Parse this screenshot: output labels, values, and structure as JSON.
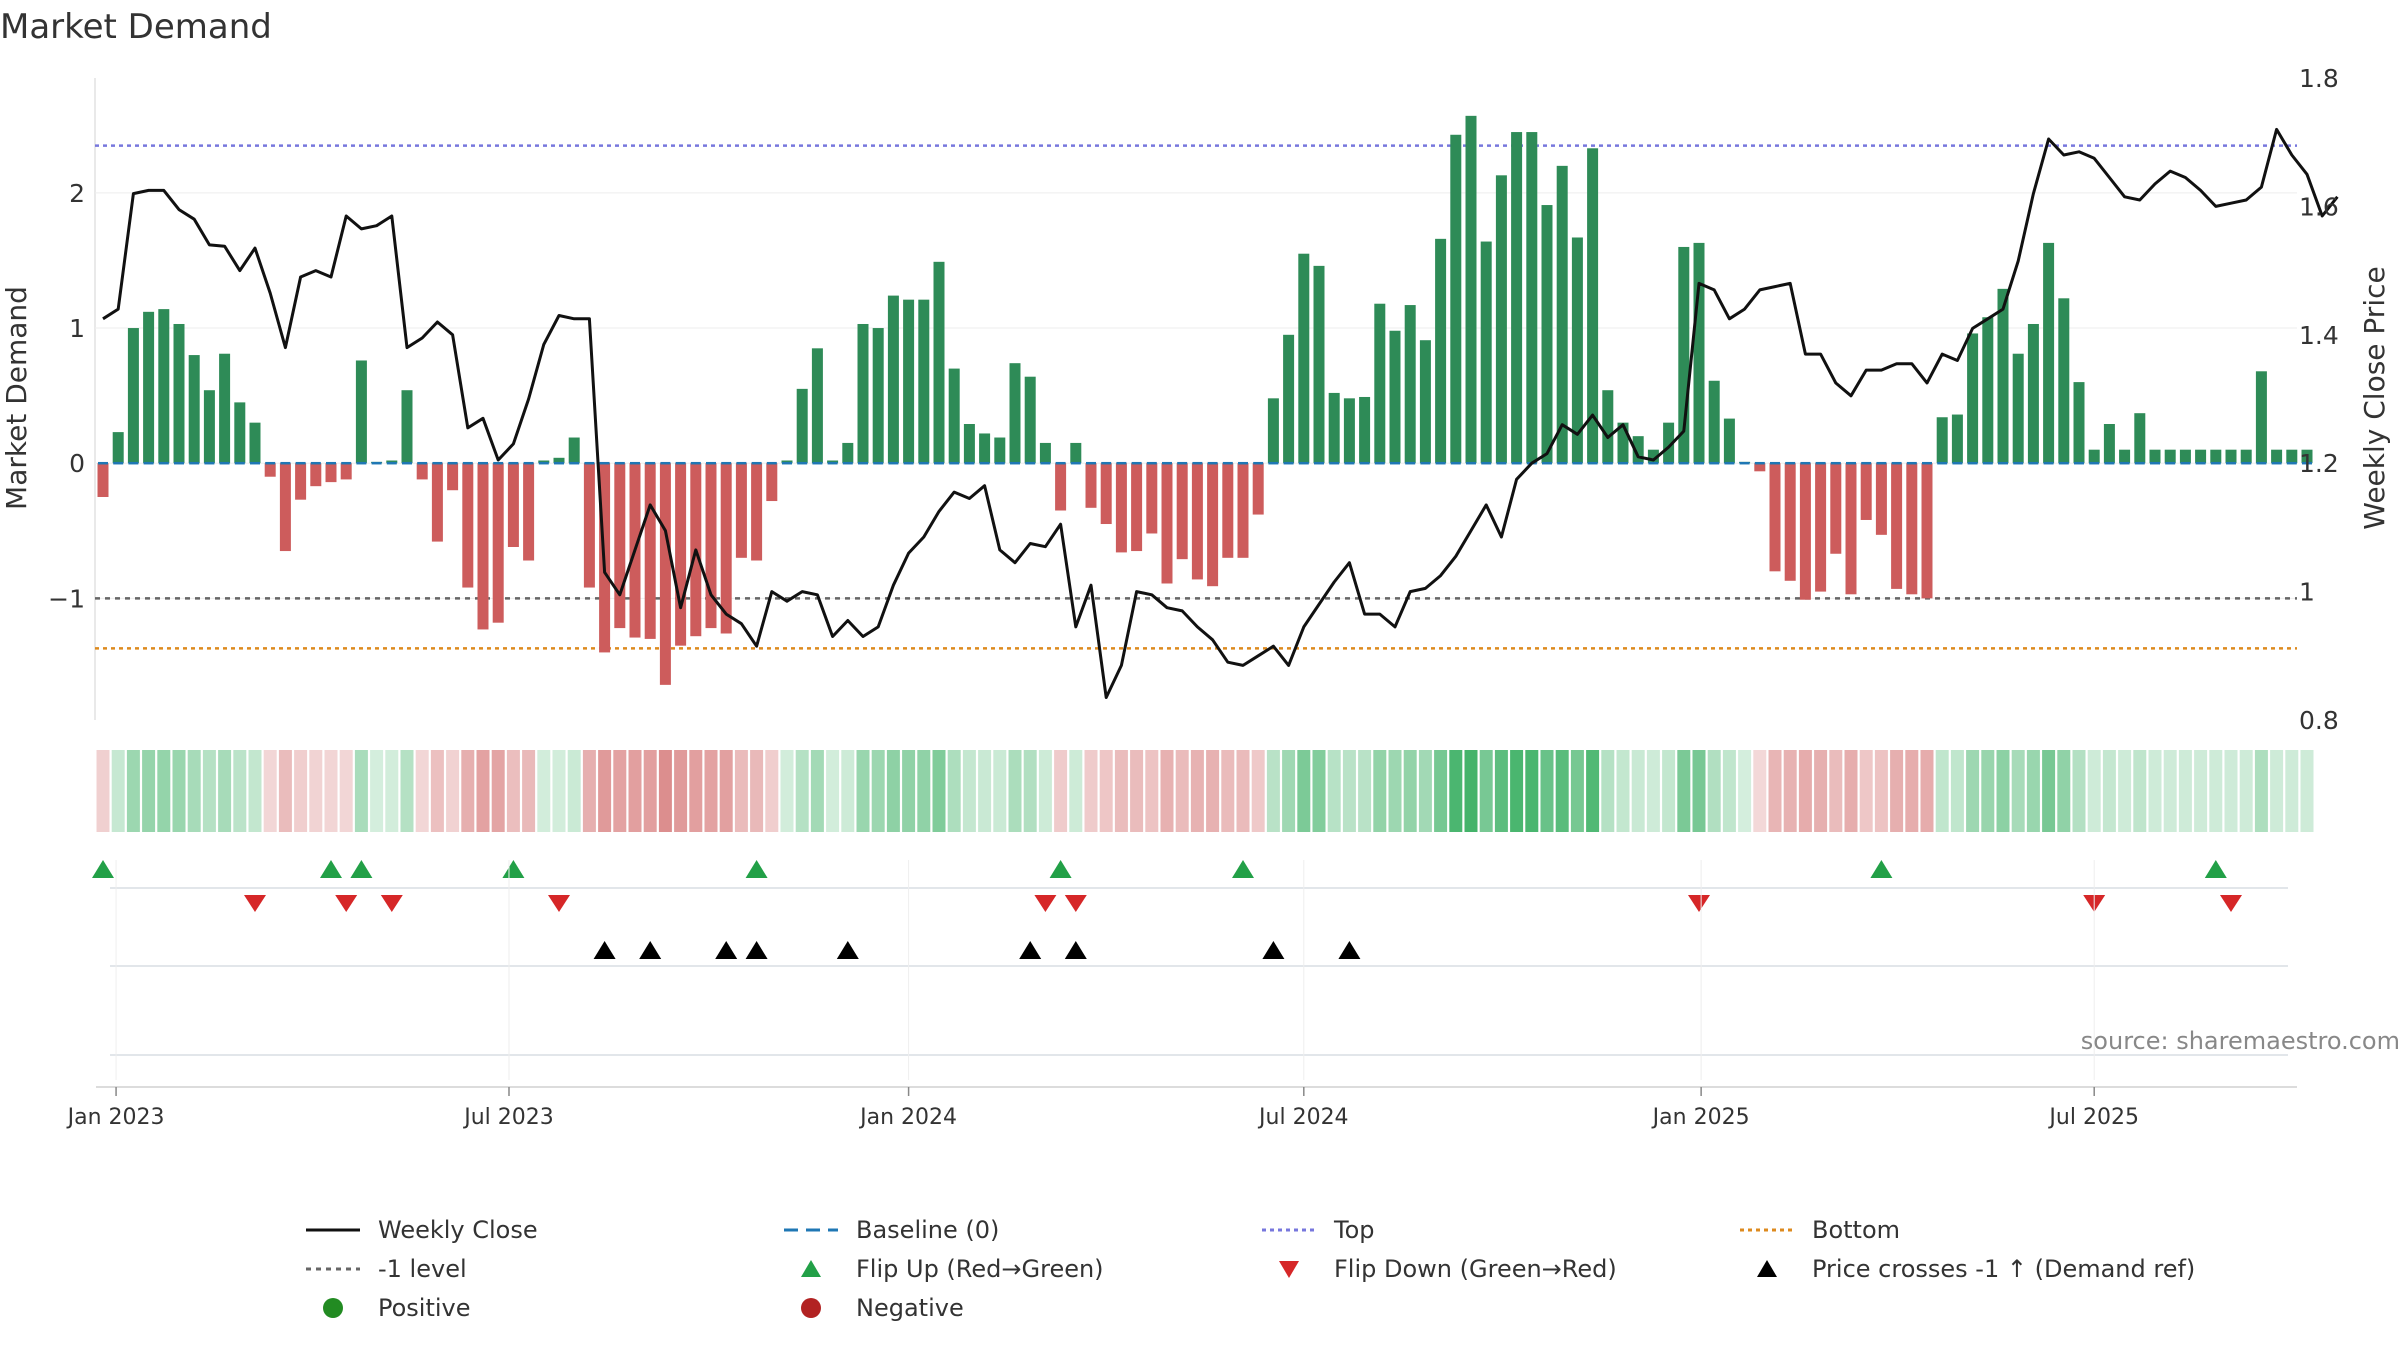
{
  "chart_data": {
    "type": "bar+line",
    "title": "Market Demand",
    "ylabel_left": "Market Demand",
    "ylabel_right": "Weekly Close Price",
    "source": "source: sharemaestro.com",
    "ylim_left": [
      -1.9,
      2.85
    ],
    "ylim_right": [
      0.8,
      1.8
    ],
    "yticks_left": [
      {
        "v": 2,
        "label": "2"
      },
      {
        "v": 1,
        "label": "1"
      },
      {
        "v": 0,
        "label": "0"
      },
      {
        "v": -1,
        "label": "−1"
      }
    ],
    "yticks_right": [
      {
        "v": 1.8,
        "label": "1.8"
      },
      {
        "v": 1.6,
        "label": "1.6"
      },
      {
        "v": 1.4,
        "label": "1.4"
      },
      {
        "v": 1.2,
        "label": "1.2"
      },
      {
        "v": 1.0,
        "label": "1"
      },
      {
        "v": 0.8,
        "label": "0.8"
      }
    ],
    "x_start": "2022-12-26",
    "x_step_weeks": 1,
    "xticks": [
      {
        "week": 0.86,
        "label": "Jan 2023"
      },
      {
        "week": 26.71,
        "label": "Jul 2023"
      },
      {
        "week": 53,
        "label": "Jan 2024"
      },
      {
        "week": 79,
        "label": "Jul 2024"
      },
      {
        "week": 105.14,
        "label": "Jan 2025"
      },
      {
        "week": 131,
        "label": "Jul 2025"
      }
    ],
    "reference_lines": {
      "top": 2.35,
      "bottom": -1.37,
      "minus_one": -1,
      "baseline": 0
    },
    "demand": [
      -0.25,
      0.23,
      1.0,
      1.12,
      1.14,
      1.03,
      0.8,
      0.54,
      0.81,
      0.45,
      0.3,
      -0.1,
      -0.65,
      -0.27,
      -0.17,
      -0.14,
      -0.12,
      0.76,
      0.01,
      0.02,
      0.54,
      -0.12,
      -0.58,
      -0.2,
      -0.92,
      -1.23,
      -1.18,
      -0.62,
      -0.72,
      0.02,
      0.04,
      0.19,
      -0.92,
      -1.4,
      -1.22,
      -1.29,
      -1.3,
      -1.64,
      -1.35,
      -1.28,
      -1.22,
      -1.26,
      -0.7,
      -0.72,
      -0.28,
      0.02,
      0.55,
      0.85,
      0.02,
      0.15,
      1.03,
      1.0,
      1.24,
      1.21,
      1.21,
      1.49,
      0.7,
      0.29,
      0.22,
      0.19,
      0.74,
      0.64,
      0.15,
      -0.35,
      0.15,
      -0.33,
      -0.45,
      -0.66,
      -0.65,
      -0.52,
      -0.89,
      -0.71,
      -0.86,
      -0.91,
      -0.7,
      -0.7,
      -0.38,
      0.48,
      0.95,
      1.55,
      1.46,
      0.52,
      0.48,
      0.49,
      1.18,
      0.98,
      1.17,
      0.91,
      1.66,
      2.43,
      2.57,
      1.64,
      2.13,
      2.45,
      2.45,
      1.91,
      2.2,
      1.67,
      2.33,
      0.54,
      0.3,
      0.2,
      0.1,
      0.3,
      1.6,
      1.63,
      0.61,
      0.33,
      0.01,
      -0.06,
      -0.8,
      -0.87,
      -1.01,
      -0.95,
      -0.67,
      -0.97,
      -0.42,
      -0.53,
      -0.93,
      -0.97,
      -1.0,
      0.34,
      0.36,
      0.96,
      1.08,
      1.29,
      0.81,
      1.03,
      1.63,
      1.22,
      0.6,
      0.1,
      0.29,
      0.1,
      0.37,
      0.1,
      0.1,
      0.1,
      0.1,
      0.1,
      0.1,
      0.1,
      0.68,
      0.1,
      0.1,
      0.1
    ],
    "demand_fix_note": "",
    "close": [
      1.425,
      1.44,
      1.62,
      1.625,
      1.625,
      1.595,
      1.58,
      1.54,
      1.538,
      1.5,
      1.535,
      1.465,
      1.38,
      1.49,
      1.5,
      1.49,
      1.585,
      1.565,
      1.57,
      1.585,
      1.38,
      1.395,
      1.42,
      1.4,
      1.255,
      1.27,
      1.205,
      1.23,
      1.3,
      1.385,
      1.43,
      1.425,
      1.425,
      1.03,
      0.995,
      1.065,
      1.135,
      1.095,
      0.975,
      1.065,
      0.995,
      0.965,
      0.95,
      0.915,
      1.0,
      0.985,
      1.0,
      0.995,
      0.93,
      0.955,
      0.93,
      0.945,
      1.01,
      1.06,
      1.085,
      1.125,
      1.155,
      1.145,
      1.165,
      1.065,
      1.045,
      1.075,
      1.07,
      1.105,
      0.945,
      1.01,
      0.835,
      0.885,
      1.0,
      0.995,
      0.975,
      0.97,
      0.945,
      0.925,
      0.89,
      0.885,
      0.9,
      0.915,
      0.885,
      0.945,
      0.98,
      1.015,
      1.045,
      0.965,
      0.965,
      0.945,
      1.0,
      1.005,
      1.025,
      1.055,
      1.095,
      1.135,
      1.085,
      1.175,
      1.2,
      1.215,
      1.26,
      1.245,
      1.275,
      1.24,
      1.26,
      1.21,
      1.205,
      1.225,
      1.25,
      1.48,
      1.47,
      1.425,
      1.44,
      1.47,
      1.475,
      1.48,
      1.37,
      1.37,
      1.325,
      1.305,
      1.345,
      1.345,
      1.355,
      1.355,
      1.325,
      1.37,
      1.36,
      1.41,
      1.425,
      1.44,
      1.515,
      1.62,
      1.705,
      1.68,
      1.685,
      1.675,
      1.645,
      1.615,
      1.61,
      1.635,
      1.655,
      1.645,
      1.625,
      1.6,
      1.605,
      1.61,
      1.63,
      1.72,
      1.68,
      1.65,
      1.585,
      1.615
    ],
    "heat_strip": "weekly tint of demand sign and magnitude",
    "flip_up_weeks": [
      0,
      15,
      17,
      27,
      43,
      63,
      75,
      117,
      139
    ],
    "flip_down_weeks": [
      10,
      16,
      19,
      30,
      62,
      64,
      105,
      131,
      140
    ],
    "price_cross_weeks": [
      33,
      36,
      41,
      43,
      49,
      61,
      64,
      77,
      82
    ],
    "legend": [
      {
        "key": "weekly_close",
        "label": "Weekly Close"
      },
      {
        "key": "baseline",
        "label": "Baseline (0)"
      },
      {
        "key": "top",
        "label": "Top"
      },
      {
        "key": "bottom",
        "label": "Bottom"
      },
      {
        "key": "minus_one",
        "label": "-1 level"
      },
      {
        "key": "flip_up",
        "label": "Flip Up (Red→Green)"
      },
      {
        "key": "flip_down",
        "label": "Flip Down (Green→Red)"
      },
      {
        "key": "price_cross",
        "label": "Price crosses -1 ↑ (Demand ref)"
      },
      {
        "key": "positive",
        "label": "Positive"
      },
      {
        "key": "negative",
        "label": "Negative"
      }
    ]
  },
  "colors": {
    "positive": "#2e8b57",
    "negative": "#cd5c5c",
    "close": "#111111",
    "baseline": "#1f77b4",
    "top": "#7777dd",
    "bottom": "#dd8a1e",
    "minus_one": "#666666",
    "flip_up": "#22a047",
    "flip_down": "#d62728",
    "price_cross": "#000000",
    "positive_dot": "#228b22",
    "negative_dot": "#b22222"
  }
}
